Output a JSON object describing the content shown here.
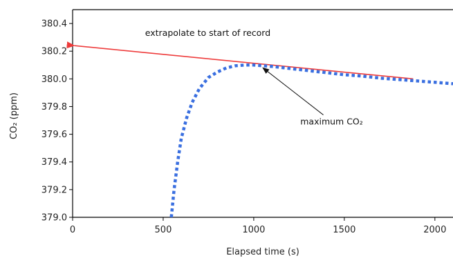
{
  "chart_data": {
    "type": "line",
    "xlabel": "Elapsed time (s)",
    "ylabel": "CO₂ (ppm)",
    "xlim": [
      0,
      2100
    ],
    "ylim": [
      379.0,
      380.5
    ],
    "x_ticks": [
      0,
      500,
      1000,
      1500,
      2000
    ],
    "x_tick_labels": [
      "0",
      "500",
      "1000",
      "1500",
      "2000"
    ],
    "y_ticks": [
      379.0,
      379.2,
      379.4,
      379.6,
      379.8,
      380.0,
      380.2,
      380.4
    ],
    "y_tick_labels": [
      "379.0",
      "379.2",
      "379.4",
      "379.6",
      "379.8",
      "380.0",
      "380.2",
      "380.4"
    ],
    "grid": false,
    "series": [
      {
        "style": "dotted",
        "color": "#3a6fe0",
        "x": [
          545,
          560,
          580,
          600,
          630,
          660,
          700,
          750,
          800,
          850,
          900,
          950,
          1000,
          1050,
          1100,
          1200,
          1300,
          1400,
          1500,
          1600,
          1700,
          1800,
          1900,
          2000,
          2100
        ],
        "y": [
          379.0,
          379.2,
          379.4,
          379.57,
          379.72,
          379.83,
          379.93,
          380.01,
          380.05,
          380.08,
          380.095,
          380.1,
          380.1,
          380.095,
          380.09,
          380.075,
          380.06,
          380.045,
          380.03,
          380.02,
          380.005,
          379.995,
          379.985,
          379.975,
          379.965
        ]
      },
      {
        "style": "solid-arrow",
        "color": "#ee3b3b",
        "x": [
          1880,
          10
        ],
        "y": [
          380.0,
          380.24
        ]
      }
    ],
    "annotations": [
      {
        "text": "extrapolate to start of record",
        "x": 400,
        "y": 380.31
      },
      {
        "text": "maximum CO₂",
        "x": 1430,
        "y": 379.67,
        "arrow_to": {
          "x": 1050,
          "y": 380.09
        }
      }
    ]
  }
}
